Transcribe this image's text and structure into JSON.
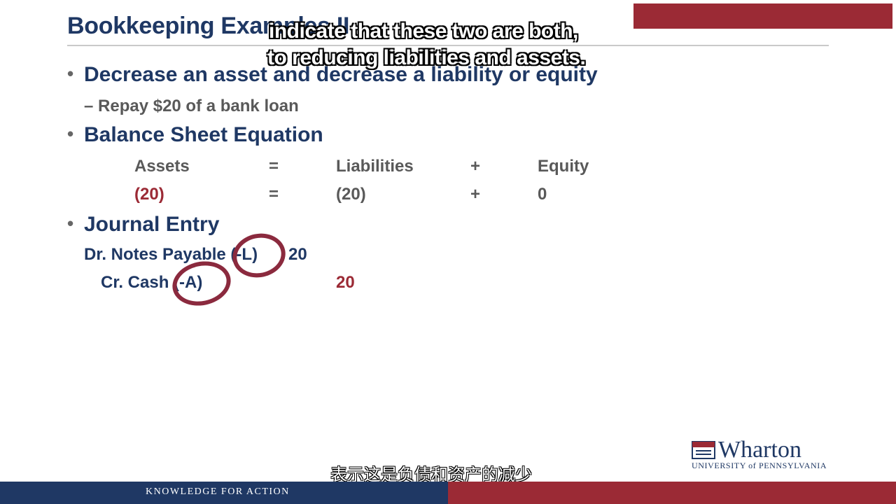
{
  "slide": {
    "title": "Bookkeeping Examples II",
    "bullets": [
      {
        "text": "Decrease an asset and decrease a liability or equity",
        "sub": "– Repay $20 of a bank loan"
      },
      {
        "text": "Balance Sheet Equation"
      },
      {
        "text": "Journal Entry"
      }
    ],
    "bullet_symbol": "•",
    "equation": {
      "headers": [
        "Assets",
        "=",
        "Liabilities",
        "+",
        "Equity"
      ],
      "values": [
        "(20)",
        "=",
        "(20)",
        "+",
        "0"
      ]
    },
    "journal": {
      "debit_label": "Dr. Notes Payable (-L)",
      "debit_amount": "20",
      "credit_label": "Cr. Cash (-A)",
      "credit_amount": "20"
    }
  },
  "captions": {
    "line1": "indicate that these two are both,",
    "line2": "to reducing liabilities and assets.",
    "chinese": "表示这是负债和资产的减少"
  },
  "logo": {
    "name": "Wharton",
    "university": "UNIVERSITY of PENNSYLVANIA"
  },
  "footer": {
    "tagline": "KNOWLEDGE FOR ACTION"
  },
  "colors": {
    "navy": "#1f3864",
    "maroon": "#9b2a35",
    "gray": "#595959"
  }
}
